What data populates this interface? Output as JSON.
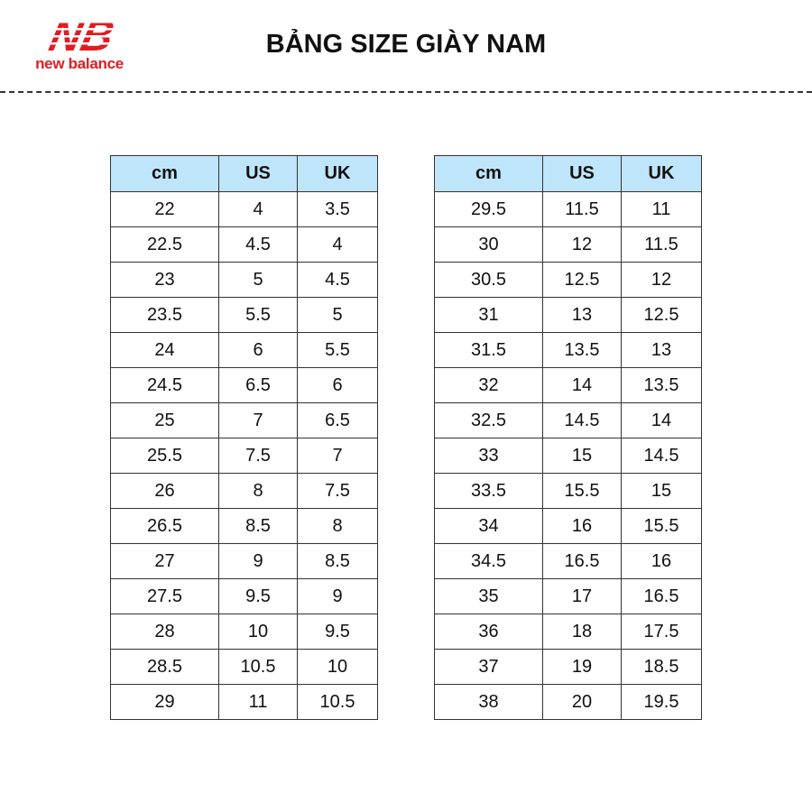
{
  "logo": {
    "brand": "new balance",
    "mark": "NB",
    "color": "#e21b23"
  },
  "title": "BẢNG SIZE GIÀY NAM",
  "headers": [
    "cm",
    "US",
    "UK"
  ],
  "header_color": "#bfe5fa",
  "left_table": [
    [
      "22",
      "4",
      "3.5"
    ],
    [
      "22.5",
      "4.5",
      "4"
    ],
    [
      "23",
      "5",
      "4.5"
    ],
    [
      "23.5",
      "5.5",
      "5"
    ],
    [
      "24",
      "6",
      "5.5"
    ],
    [
      "24.5",
      "6.5",
      "6"
    ],
    [
      "25",
      "7",
      "6.5"
    ],
    [
      "25.5",
      "7.5",
      "7"
    ],
    [
      "26",
      "8",
      "7.5"
    ],
    [
      "26.5",
      "8.5",
      "8"
    ],
    [
      "27",
      "9",
      "8.5"
    ],
    [
      "27.5",
      "9.5",
      "9"
    ],
    [
      "28",
      "10",
      "9.5"
    ],
    [
      "28.5",
      "10.5",
      "10"
    ],
    [
      "29",
      "11",
      "10.5"
    ]
  ],
  "right_table": [
    [
      "29.5",
      "11.5",
      "11"
    ],
    [
      "30",
      "12",
      "11.5"
    ],
    [
      "30.5",
      "12.5",
      "12"
    ],
    [
      "31",
      "13",
      "12.5"
    ],
    [
      "31.5",
      "13.5",
      "13"
    ],
    [
      "32",
      "14",
      "13.5"
    ],
    [
      "32.5",
      "14.5",
      "14"
    ],
    [
      "33",
      "15",
      "14.5"
    ],
    [
      "33.5",
      "15.5",
      "15"
    ],
    [
      "34",
      "16",
      "15.5"
    ],
    [
      "34.5",
      "16.5",
      "16"
    ],
    [
      "35",
      "17",
      "16.5"
    ],
    [
      "36",
      "18",
      "17.5"
    ],
    [
      "37",
      "19",
      "18.5"
    ],
    [
      "38",
      "20",
      "19.5"
    ]
  ]
}
